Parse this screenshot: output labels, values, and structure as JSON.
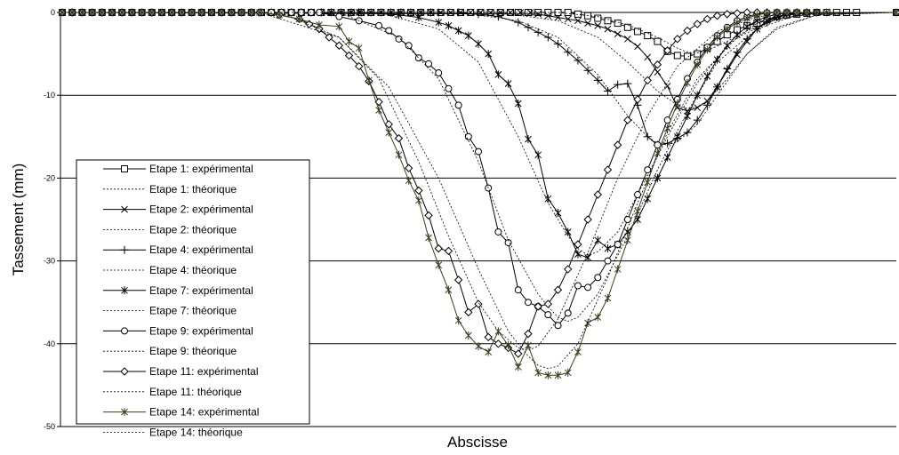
{
  "chart_data": {
    "type": "line",
    "title": "",
    "xlabel": "Abscisse",
    "ylabel": "Tassement (mm)",
    "ylim": [
      -50,
      0
    ],
    "yticks": [
      0,
      -10,
      -20,
      -30,
      -40,
      -50
    ],
    "ytick_labels": [
      "0",
      "-10",
      "-20",
      "-30",
      "-40",
      "-50"
    ],
    "xlim": [
      0,
      84
    ],
    "grid": "horizontal",
    "legend_position": "bottom-left",
    "series": [
      {
        "name": "Etape 1: expérimental",
        "marker": "square",
        "dash": false,
        "color": "#000000",
        "x": [
          0,
          46,
          47,
          48,
          49,
          50,
          51,
          52,
          53,
          54,
          55,
          56,
          57,
          58,
          59,
          60,
          61,
          62,
          63,
          64,
          65,
          66,
          67,
          68,
          69,
          70,
          71,
          72,
          73,
          74,
          75,
          76,
          77,
          78,
          79,
          80,
          84
        ],
        "y": [
          0,
          0,
          0,
          0,
          0,
          0,
          0,
          -0.2,
          -0.4,
          -0.7,
          -1.0,
          -1.3,
          -1.8,
          -2.3,
          -2.8,
          -3.5,
          -4.7,
          -5.2,
          -5.3,
          -5.0,
          -4.3,
          -3.5,
          -2.7,
          -2.1,
          -1.6,
          -1.3,
          -0.8,
          -0.5,
          -0.3,
          -0.2,
          -0.1,
          0,
          0,
          0,
          0,
          0,
          0
        ]
      },
      {
        "name": "Etape 1: théorique",
        "marker": "none",
        "dash": true,
        "color": "#000000",
        "x": [
          0,
          50,
          54,
          57,
          60,
          62,
          63,
          64,
          65,
          67,
          69,
          72,
          76,
          84
        ],
        "y": [
          0,
          0,
          -0.5,
          -1.5,
          -3.0,
          -4.3,
          -4.8,
          -4.9,
          -4.6,
          -3.5,
          -2.2,
          -0.8,
          -0.1,
          0
        ]
      },
      {
        "name": "Etape 2: expérimental",
        "marker": "x",
        "dash": false,
        "color": "#000000",
        "x": [
          0,
          48,
          49,
          50,
          51,
          52,
          53,
          54,
          55,
          56,
          57,
          58,
          59,
          60,
          61,
          62,
          63,
          64,
          65,
          66,
          67,
          68,
          69,
          70,
          71,
          72,
          73,
          74,
          75,
          76,
          84
        ],
        "y": [
          0,
          -0.2,
          -0.4,
          -0.6,
          -0.8,
          -1.0,
          -1.3,
          -1.6,
          -2.0,
          -2.6,
          -3.2,
          -4.1,
          -5.4,
          -7.2,
          -8.9,
          -11.5,
          -11.9,
          -11.5,
          -10.7,
          -9.0,
          -7.0,
          -5.1,
          -3.5,
          -2.0,
          -1.0,
          -0.5,
          -0.2,
          -0.1,
          0,
          0,
          0
        ]
      },
      {
        "name": "Etape 2: théorique",
        "marker": "none",
        "dash": true,
        "color": "#000000",
        "x": [
          0,
          44,
          50,
          54,
          57,
          60,
          62,
          63,
          64,
          65,
          67,
          69,
          72,
          76,
          84
        ],
        "y": [
          0,
          0,
          -1.0,
          -3.0,
          -6.0,
          -9.5,
          -11.2,
          -11.6,
          -11.4,
          -10.7,
          -8.0,
          -5.0,
          -1.8,
          -0.3,
          0
        ]
      },
      {
        "name": "Etape 4: expérimental",
        "marker": "plus",
        "dash": false,
        "color": "#000000",
        "x": [
          0,
          38,
          40,
          42,
          44,
          46,
          47,
          48,
          49,
          50,
          51,
          52,
          53,
          54,
          55,
          56,
          57,
          58,
          59,
          60,
          61,
          62,
          63,
          64,
          65,
          66,
          67,
          68,
          69,
          70,
          71,
          72,
          73,
          74,
          75,
          76,
          84
        ],
        "y": [
          0,
          0,
          0,
          -0.2,
          -0.5,
          -1.2,
          -1.8,
          -2.4,
          -3.0,
          -3.8,
          -4.8,
          -5.8,
          -7.0,
          -8.2,
          -9.5,
          -8.7,
          -8.6,
          -11.2,
          -15.0,
          -16.0,
          -15.8,
          -15.2,
          -14.5,
          -13.0,
          -11.2,
          -9.0,
          -6.8,
          -4.8,
          -3.2,
          -2.0,
          -1.2,
          -0.6,
          -0.3,
          -0.1,
          0,
          0,
          0
        ]
      },
      {
        "name": "Etape 4: théorique",
        "marker": "none",
        "dash": true,
        "color": "#000000",
        "x": [
          0,
          40,
          46,
          50,
          54,
          57,
          59,
          60,
          61,
          62,
          64,
          66,
          69,
          72,
          76,
          84
        ],
        "y": [
          0,
          0,
          -1.0,
          -3.0,
          -7.5,
          -12.5,
          -15.0,
          -15.8,
          -16.0,
          -15.6,
          -13.5,
          -10.0,
          -5.0,
          -2.0,
          -0.3,
          0
        ]
      },
      {
        "name": "Etape 7: expérimental",
        "marker": "asterisk",
        "dash": false,
        "color": "#000000",
        "x": [
          0,
          30,
          34,
          36,
          38,
          39,
          40,
          41,
          42,
          43,
          44,
          45,
          46,
          47,
          48,
          49,
          50,
          51,
          52,
          53,
          54,
          55,
          56,
          57,
          58,
          59,
          60,
          61,
          62,
          63,
          64,
          65,
          66,
          67,
          68,
          69,
          70,
          71,
          72,
          73,
          74,
          75,
          76,
          84
        ],
        "y": [
          0,
          0,
          -0.3,
          -0.6,
          -1.2,
          -1.6,
          -2.2,
          -2.8,
          -3.8,
          -5.0,
          -7.5,
          -8.6,
          -11.0,
          -15.3,
          -17.2,
          -22.5,
          -24.2,
          -26.5,
          -29.2,
          -29.6,
          -27.5,
          -28.5,
          -28.0,
          -26.5,
          -25.0,
          -22.5,
          -20.0,
          -17.5,
          -15.0,
          -12.5,
          -10.0,
          -7.7,
          -5.7,
          -4.0,
          -2.7,
          -1.7,
          -1.0,
          -0.5,
          -0.2,
          -0.1,
          0,
          0,
          0,
          0
        ]
      },
      {
        "name": "Etape 7: théorique",
        "marker": "none",
        "dash": true,
        "color": "#000000",
        "x": [
          0,
          32,
          38,
          42,
          46,
          49,
          51,
          52,
          53,
          54,
          56,
          58,
          61,
          64,
          67,
          70,
          74,
          84
        ],
        "y": [
          0,
          0,
          -2.0,
          -6.0,
          -15.0,
          -23.0,
          -27.0,
          -28.5,
          -29.3,
          -28.9,
          -26.5,
          -22.0,
          -15.0,
          -8.5,
          -4.0,
          -1.3,
          -0.2,
          0
        ]
      },
      {
        "name": "Etape 9: expérimental",
        "marker": "circle",
        "dash": false,
        "color": "#000000",
        "x": [
          0,
          26,
          28,
          30,
          32,
          33,
          34,
          35,
          36,
          37,
          38,
          39,
          40,
          41,
          42,
          43,
          44,
          45,
          46,
          47,
          48,
          49,
          50,
          51,
          52,
          53,
          54,
          55,
          56,
          57,
          58,
          59,
          60,
          61,
          62,
          63,
          64,
          65,
          66,
          67,
          68,
          69,
          70,
          71,
          72,
          73,
          74,
          75,
          76,
          84
        ],
        "y": [
          0,
          0,
          -0.5,
          -1.0,
          -1.6,
          -2.2,
          -3.2,
          -4.0,
          -5.5,
          -6.2,
          -7.3,
          -9.2,
          -11.2,
          -15.0,
          -16.8,
          -21.2,
          -26.5,
          -27.8,
          -33.5,
          -35.0,
          -35.5,
          -36.5,
          -37.8,
          -36.3,
          -33.0,
          -33.2,
          -32.0,
          -30.0,
          -28.0,
          -25.0,
          -22.0,
          -19.0,
          -16.0,
          -13.0,
          -10.5,
          -8.0,
          -6.0,
          -4.2,
          -2.8,
          -1.8,
          -1.0,
          -0.5,
          -0.2,
          -0.1,
          0,
          0,
          0,
          0,
          0,
          0
        ]
      },
      {
        "name": "Etape 9: théorique",
        "marker": "none",
        "dash": true,
        "color": "#000000",
        "x": [
          0,
          28,
          34,
          38,
          42,
          45,
          48,
          49,
          50,
          51,
          52,
          54,
          57,
          60,
          63,
          66,
          70,
          74,
          84
        ],
        "y": [
          0,
          0,
          -3.0,
          -8.0,
          -18.0,
          -27.5,
          -34.0,
          -35.5,
          -36.8,
          -37.3,
          -36.8,
          -34.0,
          -27.0,
          -19.0,
          -12.0,
          -6.0,
          -2.0,
          -0.3,
          0
        ]
      },
      {
        "name": "Etape 11: expérimental",
        "marker": "diamond",
        "dash": false,
        "color": "#000000",
        "x": [
          0,
          20,
          22,
          24,
          25,
          26,
          27,
          28,
          29,
          30,
          31,
          32,
          33,
          34,
          35,
          36,
          37,
          38,
          39,
          40,
          41,
          42,
          43,
          44,
          45,
          46,
          47,
          48,
          49,
          50,
          51,
          52,
          53,
          54,
          55,
          56,
          57,
          58,
          59,
          60,
          61,
          62,
          63,
          64,
          65,
          66,
          67,
          68,
          69,
          70,
          71,
          72,
          73,
          74,
          75,
          76,
          84
        ],
        "y": [
          0,
          0,
          -0.3,
          -0.8,
          -1.4,
          -2.0,
          -3.0,
          -4.0,
          -5.2,
          -6.5,
          -8.3,
          -10.8,
          -13.5,
          -15.2,
          -18.8,
          -21.5,
          -24.5,
          -28.5,
          -28.8,
          -32.3,
          -36.2,
          -35.2,
          -39.2,
          -40.0,
          -40.5,
          -41.2,
          -38.8,
          -35.5,
          -35.2,
          -33.5,
          -31.0,
          -28.0,
          -25.0,
          -22.0,
          -19.0,
          -16.0,
          -13.0,
          -10.5,
          -8.2,
          -6.3,
          -4.6,
          -3.2,
          -2.2,
          -1.4,
          -0.8,
          -0.4,
          -0.2,
          -0.1,
          0,
          0,
          0,
          0,
          0,
          0,
          0,
          0,
          0
        ]
      },
      {
        "name": "Etape 11: théorique",
        "marker": "none",
        "dash": true,
        "color": "#000000",
        "x": [
          0,
          22,
          28,
          32,
          36,
          39,
          42,
          44,
          46,
          47,
          48,
          50,
          53,
          56,
          59,
          62,
          66,
          70,
          74,
          84
        ],
        "y": [
          0,
          0,
          -3.0,
          -8.0,
          -18.0,
          -27.0,
          -35.0,
          -38.5,
          -40.5,
          -40.8,
          -40.3,
          -37.0,
          -29.0,
          -20.0,
          -12.5,
          -6.5,
          -2.3,
          -0.5,
          -0.1,
          0
        ]
      },
      {
        "name": "Etape 14: expérimental",
        "marker": "asterisk",
        "dash": false,
        "color": "#3d3d1c",
        "x": [
          0,
          20,
          22,
          24,
          26,
          28,
          29,
          30,
          31,
          32,
          33,
          34,
          35,
          36,
          37,
          38,
          39,
          40,
          41,
          42,
          43,
          44,
          45,
          46,
          47,
          48,
          49,
          50,
          51,
          52,
          53,
          54,
          55,
          56,
          57,
          58,
          59,
          60,
          61,
          62,
          63,
          64,
          65,
          66,
          67,
          68,
          69,
          70,
          71,
          72,
          73,
          74,
          75,
          76,
          77,
          84
        ],
        "y": [
          0,
          0,
          -0.3,
          -0.8,
          -1.5,
          -1.7,
          -3.5,
          -4.3,
          -8.2,
          -11.8,
          -14.5,
          -17.2,
          -20.3,
          -22.7,
          -27.2,
          -30.5,
          -33.5,
          -37.2,
          -39.0,
          -40.3,
          -41.0,
          -38.5,
          -40.2,
          -42.8,
          -40.2,
          -43.5,
          -43.8,
          -43.8,
          -43.5,
          -41.0,
          -37.5,
          -36.8,
          -34.5,
          -31.0,
          -27.5,
          -24.0,
          -20.5,
          -17.0,
          -14.0,
          -11.0,
          -8.5,
          -6.3,
          -4.5,
          -3.0,
          -2.0,
          -1.2,
          -0.7,
          -0.3,
          -0.1,
          0,
          0,
          0,
          0,
          0,
          0,
          0
        ]
      },
      {
        "name": "Etape 14: théorique",
        "marker": "none",
        "dash": true,
        "color": "#000000",
        "x": [
          0,
          20,
          28,
          33,
          38,
          42,
          45,
          47,
          48,
          49,
          50,
          52,
          55,
          58,
          61,
          64,
          68,
          72,
          76,
          84
        ],
        "y": [
          0,
          0,
          -3.0,
          -9.0,
          -20.0,
          -31.0,
          -38.5,
          -41.5,
          -42.6,
          -43.0,
          -42.7,
          -40.0,
          -32.0,
          -23.0,
          -14.5,
          -8.0,
          -3.0,
          -0.8,
          -0.1,
          0
        ]
      }
    ]
  }
}
